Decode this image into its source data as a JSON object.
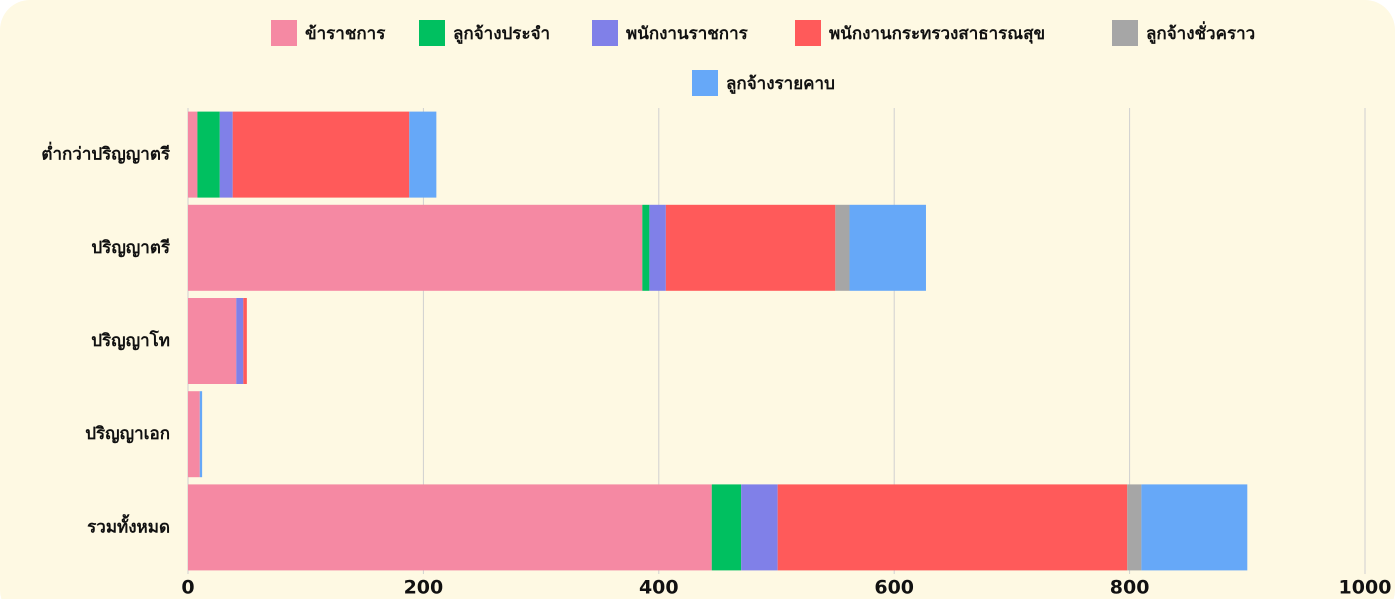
{
  "chart_data": {
    "type": "bar",
    "orientation": "horizontal",
    "stacked": true,
    "categories": [
      "ต่ำกว่าปริญญาตรี",
      "ปริญญาตรี",
      "ปริญญาโท",
      "ปริญญาเอก",
      "รวมทั้งหมด"
    ],
    "series": [
      {
        "name": "ข้าราชการ",
        "color": "#f589a3",
        "values": [
          8,
          386,
          41,
          10,
          445
        ]
      },
      {
        "name": "ลูกจ้างประจำ",
        "color": "#00c060",
        "values": [
          19,
          6,
          0,
          0,
          25
        ]
      },
      {
        "name": "พนักงานราชการ",
        "color": "#8080e8",
        "values": [
          11,
          14,
          6,
          0,
          31
        ]
      },
      {
        "name": "พนักงานกระทรวงสาธารณสุข",
        "color": "#ff5a5a",
        "values": [
          150,
          144,
          3,
          0,
          297
        ]
      },
      {
        "name": "ลูกจ้างชั่วคราว",
        "color": "#a6a6a6",
        "values": [
          0,
          12,
          0,
          0,
          12
        ]
      },
      {
        "name": "ลูกจ้างรายคาบ",
        "color": "#66a8f8",
        "values": [
          23,
          65,
          0,
          2,
          90
        ]
      }
    ],
    "xlim": [
      0,
      1000
    ],
    "xticks": [
      0,
      200,
      400,
      600,
      800,
      1000
    ],
    "grid": true,
    "legend": "top"
  }
}
